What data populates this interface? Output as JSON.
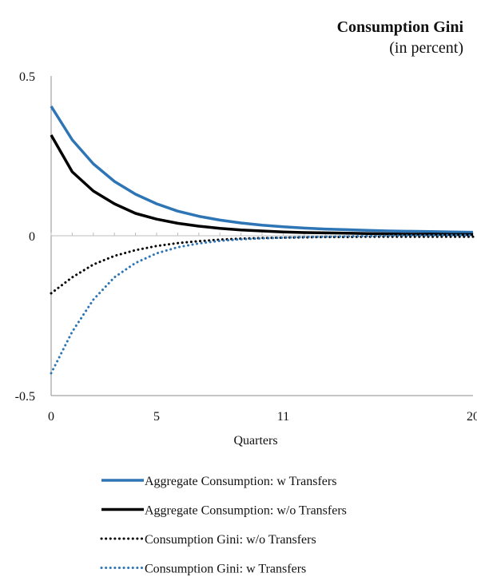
{
  "chart_data": {
    "type": "line",
    "title": "Consumption Gini",
    "subtitle": "(in percent)",
    "xlabel": "Quarters",
    "ylabel": "",
    "ylim": [
      -0.5,
      0.5
    ],
    "xlim": [
      0,
      20
    ],
    "x_ticks": [
      0,
      5,
      11,
      20
    ],
    "y_ticks": [
      -0.5,
      0,
      0.5
    ],
    "y_tick_labels": [
      "-0.5",
      "0",
      "0.5"
    ],
    "x": [
      0,
      1,
      2,
      3,
      4,
      5,
      6,
      7,
      8,
      9,
      10,
      11,
      12,
      13,
      14,
      15,
      16,
      17,
      18,
      19,
      20
    ],
    "grid": false,
    "legend_position": "bottom",
    "series": [
      {
        "name": "Aggregate Consumption: w Transfers",
        "style": "solid",
        "color": "#2E75B6",
        "values": [
          0.405,
          0.3,
          0.225,
          0.17,
          0.13,
          0.1,
          0.077,
          0.061,
          0.049,
          0.04,
          0.033,
          0.028,
          0.024,
          0.021,
          0.019,
          0.017,
          0.015,
          0.014,
          0.013,
          0.012,
          0.011
        ]
      },
      {
        "name": "Aggregate Consumption: w/o Transfers",
        "style": "solid",
        "color": "#000000",
        "values": [
          0.315,
          0.2,
          0.14,
          0.1,
          0.07,
          0.052,
          0.039,
          0.03,
          0.023,
          0.018,
          0.015,
          0.012,
          0.01,
          0.009,
          0.008,
          0.007,
          0.006,
          0.005,
          0.005,
          0.004,
          0.004
        ]
      },
      {
        "name": "Consumption Gini: w/o Transfers",
        "style": "dotted",
        "color": "#000000",
        "values": [
          -0.18,
          -0.13,
          -0.09,
          -0.063,
          -0.045,
          -0.032,
          -0.023,
          -0.017,
          -0.012,
          -0.009,
          -0.007,
          -0.006,
          -0.005,
          -0.004,
          -0.004,
          -0.003,
          -0.003,
          -0.003,
          -0.003,
          -0.003,
          -0.003
        ]
      },
      {
        "name": "Consumption Gini: w Transfers",
        "style": "dotted",
        "color": "#2E75B6",
        "values": [
          -0.43,
          -0.3,
          -0.2,
          -0.13,
          -0.085,
          -0.055,
          -0.036,
          -0.024,
          -0.016,
          -0.011,
          -0.008,
          -0.006,
          -0.004,
          -0.003,
          -0.002,
          -0.001,
          0.0,
          0.001,
          0.001,
          0.002,
          0.002
        ]
      }
    ]
  }
}
